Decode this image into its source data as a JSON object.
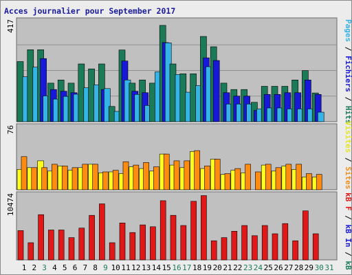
{
  "title": "Acces journalier pour September 2017",
  "panels": {
    "top": {
      "max_label": "417",
      "legend": [
        {
          "text": "Pages",
          "color": "#35b4e8"
        },
        {
          "text": " / ",
          "color": "#000000"
        },
        {
          "text": "Fichiers",
          "color": "#1818d8"
        },
        {
          "text": " / ",
          "color": "#000000"
        },
        {
          "text": "Hits",
          "color": "#1b7a58"
        }
      ]
    },
    "middle": {
      "max_label": "76",
      "legend": [
        {
          "text": "Visites",
          "color": "#e6e620"
        },
        {
          "text": " / ",
          "color": "#000000"
        },
        {
          "text": "Sites",
          "color": "#f38f18"
        }
      ]
    },
    "bottom": {
      "max_label": "10474",
      "legend": [
        {
          "text": "kB F",
          "color": "#e01818"
        },
        {
          "text": " / ",
          "color": "#000000"
        },
        {
          "text": "kB In",
          "color": "#1818d8"
        },
        {
          "text": " / ",
          "color": "#000000"
        },
        {
          "text": "kB Out",
          "color": "#1b7a58"
        }
      ]
    }
  },
  "chart_data": {
    "type": "bar",
    "title": "Acces journalier pour September 2017",
    "categories": [
      "1",
      "2",
      "3",
      "4",
      "5",
      "6",
      "7",
      "8",
      "9",
      "10",
      "11",
      "12",
      "13",
      "14",
      "15",
      "16",
      "17",
      "18",
      "19",
      "20",
      "21",
      "22",
      "23",
      "24",
      "25",
      "26",
      "27",
      "28",
      "29",
      "30",
      "31"
    ],
    "category_colors": [
      "#000000",
      "#000000",
      "#1b7a58",
      "#000000",
      "#000000",
      "#000000",
      "#000000",
      "#000000",
      "#1b7a58",
      "#000000",
      "#000000",
      "#000000",
      "#000000",
      "#000000",
      "#000000",
      "#1b7a58",
      "#1b7a58",
      "#000000",
      "#000000",
      "#000000",
      "#000000",
      "#000000",
      "#1b7a58",
      "#1b7a58",
      "#000000",
      "#000000",
      "#000000",
      "#000000",
      "#000000",
      "#1b7a58",
      "#1b7a58"
    ],
    "colors": {
      "hits": "#1b7a58",
      "files": "#1818d8",
      "pages": "#35b4e8",
      "visits": "#ffff20",
      "sites": "#ff8c10",
      "kbf": "#e01818",
      "plot_bg": "#c0c0c0",
      "grid": "#8f8f8f"
    },
    "panels": [
      {
        "name": "top",
        "ymax": 417,
        "grid": true,
        "series": [
          {
            "name": "Hits",
            "values": [
              245,
              293,
              293,
              157,
              170,
              157,
              235,
              215,
              235,
              62,
              292,
              157,
              170,
              157,
              392,
              235,
              195,
              195,
              347,
              305,
              157,
              131,
              131,
              79,
              144,
              144,
              144,
              170,
              208,
              117,
              0
            ]
          },
          {
            "name": "Fichiers",
            "values": [
              0,
              0,
              257,
              131,
              124,
              118,
              0,
              0,
              131,
              0,
              247,
              124,
              118,
              0,
              322,
              0,
              0,
              0,
              260,
              249,
              118,
              104,
              104,
              46,
              111,
              111,
              118,
              118,
              170,
              111,
              0
            ]
          },
          {
            "name": "Pages",
            "values": [
              183,
              222,
              105,
              92,
              103,
              112,
              138,
              150,
              135,
              42,
              170,
              111,
              66,
              203,
              321,
              192,
              120,
              147,
              224,
              0,
              72,
              72,
              72,
              52,
              56,
              56,
              52,
              52,
              52,
              39,
              0
            ]
          }
        ]
      },
      {
        "name": "middle",
        "ymax": 76,
        "grid": false,
        "series": [
          {
            "name": "Visites",
            "values": [
              24,
              26,
              34,
              22,
              28,
              23,
              26,
              30,
              20,
              21,
              19,
              27,
              25,
              22,
              42,
              29,
              26,
              45,
              25,
              36,
              18,
              23,
              20,
              0,
              29,
              22,
              28,
              24,
              15,
              15,
              0
            ]
          },
          {
            "name": "Sites",
            "values": [
              39,
              26,
              26,
              30,
              28,
              26,
              30,
              30,
              21,
              23,
              33,
              29,
              32,
              27,
              42,
              34,
              34,
              46,
              28,
              36,
              19,
              25,
              30,
              21,
              30,
              26,
              30,
              30,
              19,
              18,
              0
            ]
          }
        ]
      },
      {
        "name": "bottom",
        "ymax": 10474,
        "grid": false,
        "series": [
          {
            "name": "kB F",
            "values": [
              4600,
              2700,
              7100,
              4700,
              4700,
              3500,
              5000,
              7000,
              8800,
              2700,
              5800,
              4300,
              5500,
              5200,
              9300,
              7000,
              5400,
              9200,
              10100,
              3000,
              3500,
              4500,
              5400,
              3800,
              5400,
              4100,
              5700,
              3000,
              7700,
              4100,
              0
            ]
          }
        ]
      }
    ]
  }
}
